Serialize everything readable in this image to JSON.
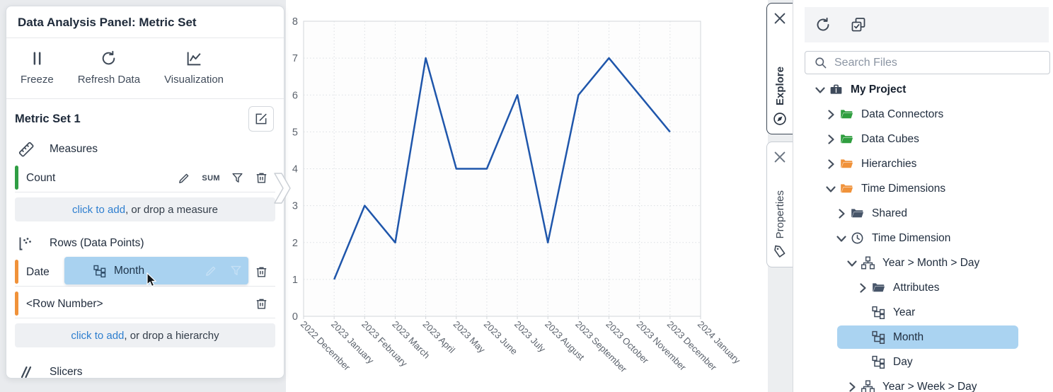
{
  "left_panel": {
    "title": "Data Analysis Panel: Metric Set",
    "toolbar": [
      {
        "label": "Freeze",
        "icon": "pause-icon"
      },
      {
        "label": "Refresh Data",
        "icon": "refresh-icon"
      },
      {
        "label": "Visualization",
        "icon": "chart-line-icon"
      }
    ],
    "metric_set": {
      "title": "Metric Set 1"
    },
    "measures": {
      "header": "Measures",
      "rows": [
        {
          "label": "Count",
          "aggregator": "SUM"
        }
      ],
      "add_link": "click to add",
      "add_rest": ", or drop a measure"
    },
    "rows_section": {
      "header": "Rows (Data Points)",
      "rows": [
        {
          "label": "Date"
        },
        {
          "label": "<Row Number>"
        }
      ],
      "chip_label": "Month",
      "add_link": "click to add",
      "add_rest": ", or drop a hierarchy"
    },
    "slicers": {
      "header": "Slicers"
    }
  },
  "chart_data": {
    "type": "line",
    "title": "",
    "xlabel": "",
    "ylabel": "",
    "x": [
      "2022 December",
      "2023 January",
      "2023 February",
      "2023 March",
      "2023 April",
      "2023 May",
      "2023 June",
      "2023 July",
      "2023 August",
      "2023 September",
      "2023 October",
      "2023 November",
      "2023 December",
      "2024 January"
    ],
    "series": [
      {
        "name": "Count",
        "values": [
          null,
          1,
          3,
          2,
          7,
          4,
          4,
          6,
          2,
          6,
          7,
          6,
          5,
          null
        ]
      }
    ],
    "ylim": [
      0,
      8
    ],
    "yticks": [
      0,
      1,
      2,
      3,
      4,
      5,
      6,
      7,
      8
    ],
    "grid": true,
    "legend": "none",
    "line_color": "#1f56ab"
  },
  "right_panel": {
    "tabs": [
      {
        "label": "Explore"
      },
      {
        "label": "Properties"
      }
    ],
    "search_placeholder": "Search Files",
    "tree": [
      {
        "label": "My Project",
        "depth": 0,
        "expander": "down",
        "icon": "briefcase",
        "bold": true
      },
      {
        "label": "Data Connectors",
        "depth": 1,
        "expander": "right",
        "icon": "folder",
        "color": "green"
      },
      {
        "label": "Data Cubes",
        "depth": 1,
        "expander": "right",
        "icon": "folder",
        "color": "green"
      },
      {
        "label": "Hierarchies",
        "depth": 1,
        "expander": "right",
        "icon": "folder",
        "color": "orange"
      },
      {
        "label": "Time Dimensions",
        "depth": 1,
        "expander": "down",
        "icon": "folder",
        "color": "orange"
      },
      {
        "label": "Shared",
        "depth": 2,
        "expander": "right",
        "icon": "folder",
        "color": "slate"
      },
      {
        "label": "Time Dimension",
        "depth": 2,
        "expander": "down",
        "icon": "clock"
      },
      {
        "label": "Year > Month > Day",
        "depth": 3,
        "expander": "down",
        "icon": "orgchart"
      },
      {
        "label": "Attributes",
        "depth": 4,
        "expander": "right",
        "icon": "folder",
        "color": "slate"
      },
      {
        "label": "Year",
        "depth": 4,
        "expander": "none",
        "icon": "level"
      },
      {
        "label": "Month",
        "depth": 4,
        "expander": "none",
        "icon": "level",
        "selected": true
      },
      {
        "label": "Day",
        "depth": 4,
        "expander": "none",
        "icon": "level"
      },
      {
        "label": "Year > Week > Day",
        "depth": 3,
        "expander": "right",
        "icon": "orgchart"
      }
    ]
  },
  "colors": {
    "line": "#1f56ab",
    "grid": "#dcdfe3",
    "axis_border": "#d2d6da",
    "axis_text": "#5c636d",
    "measure_bar_green": "#2f9e44",
    "hierarchy_bar_orange": "#f0923a",
    "drag_chip_blue": "#a9d2f0",
    "tree_highlight_blue": "#aad3f1",
    "folder_green": "#2f9e3f",
    "folder_orange": "#f0923a",
    "folder_slate": "#475569",
    "link_blue": "#2d7ecf"
  }
}
